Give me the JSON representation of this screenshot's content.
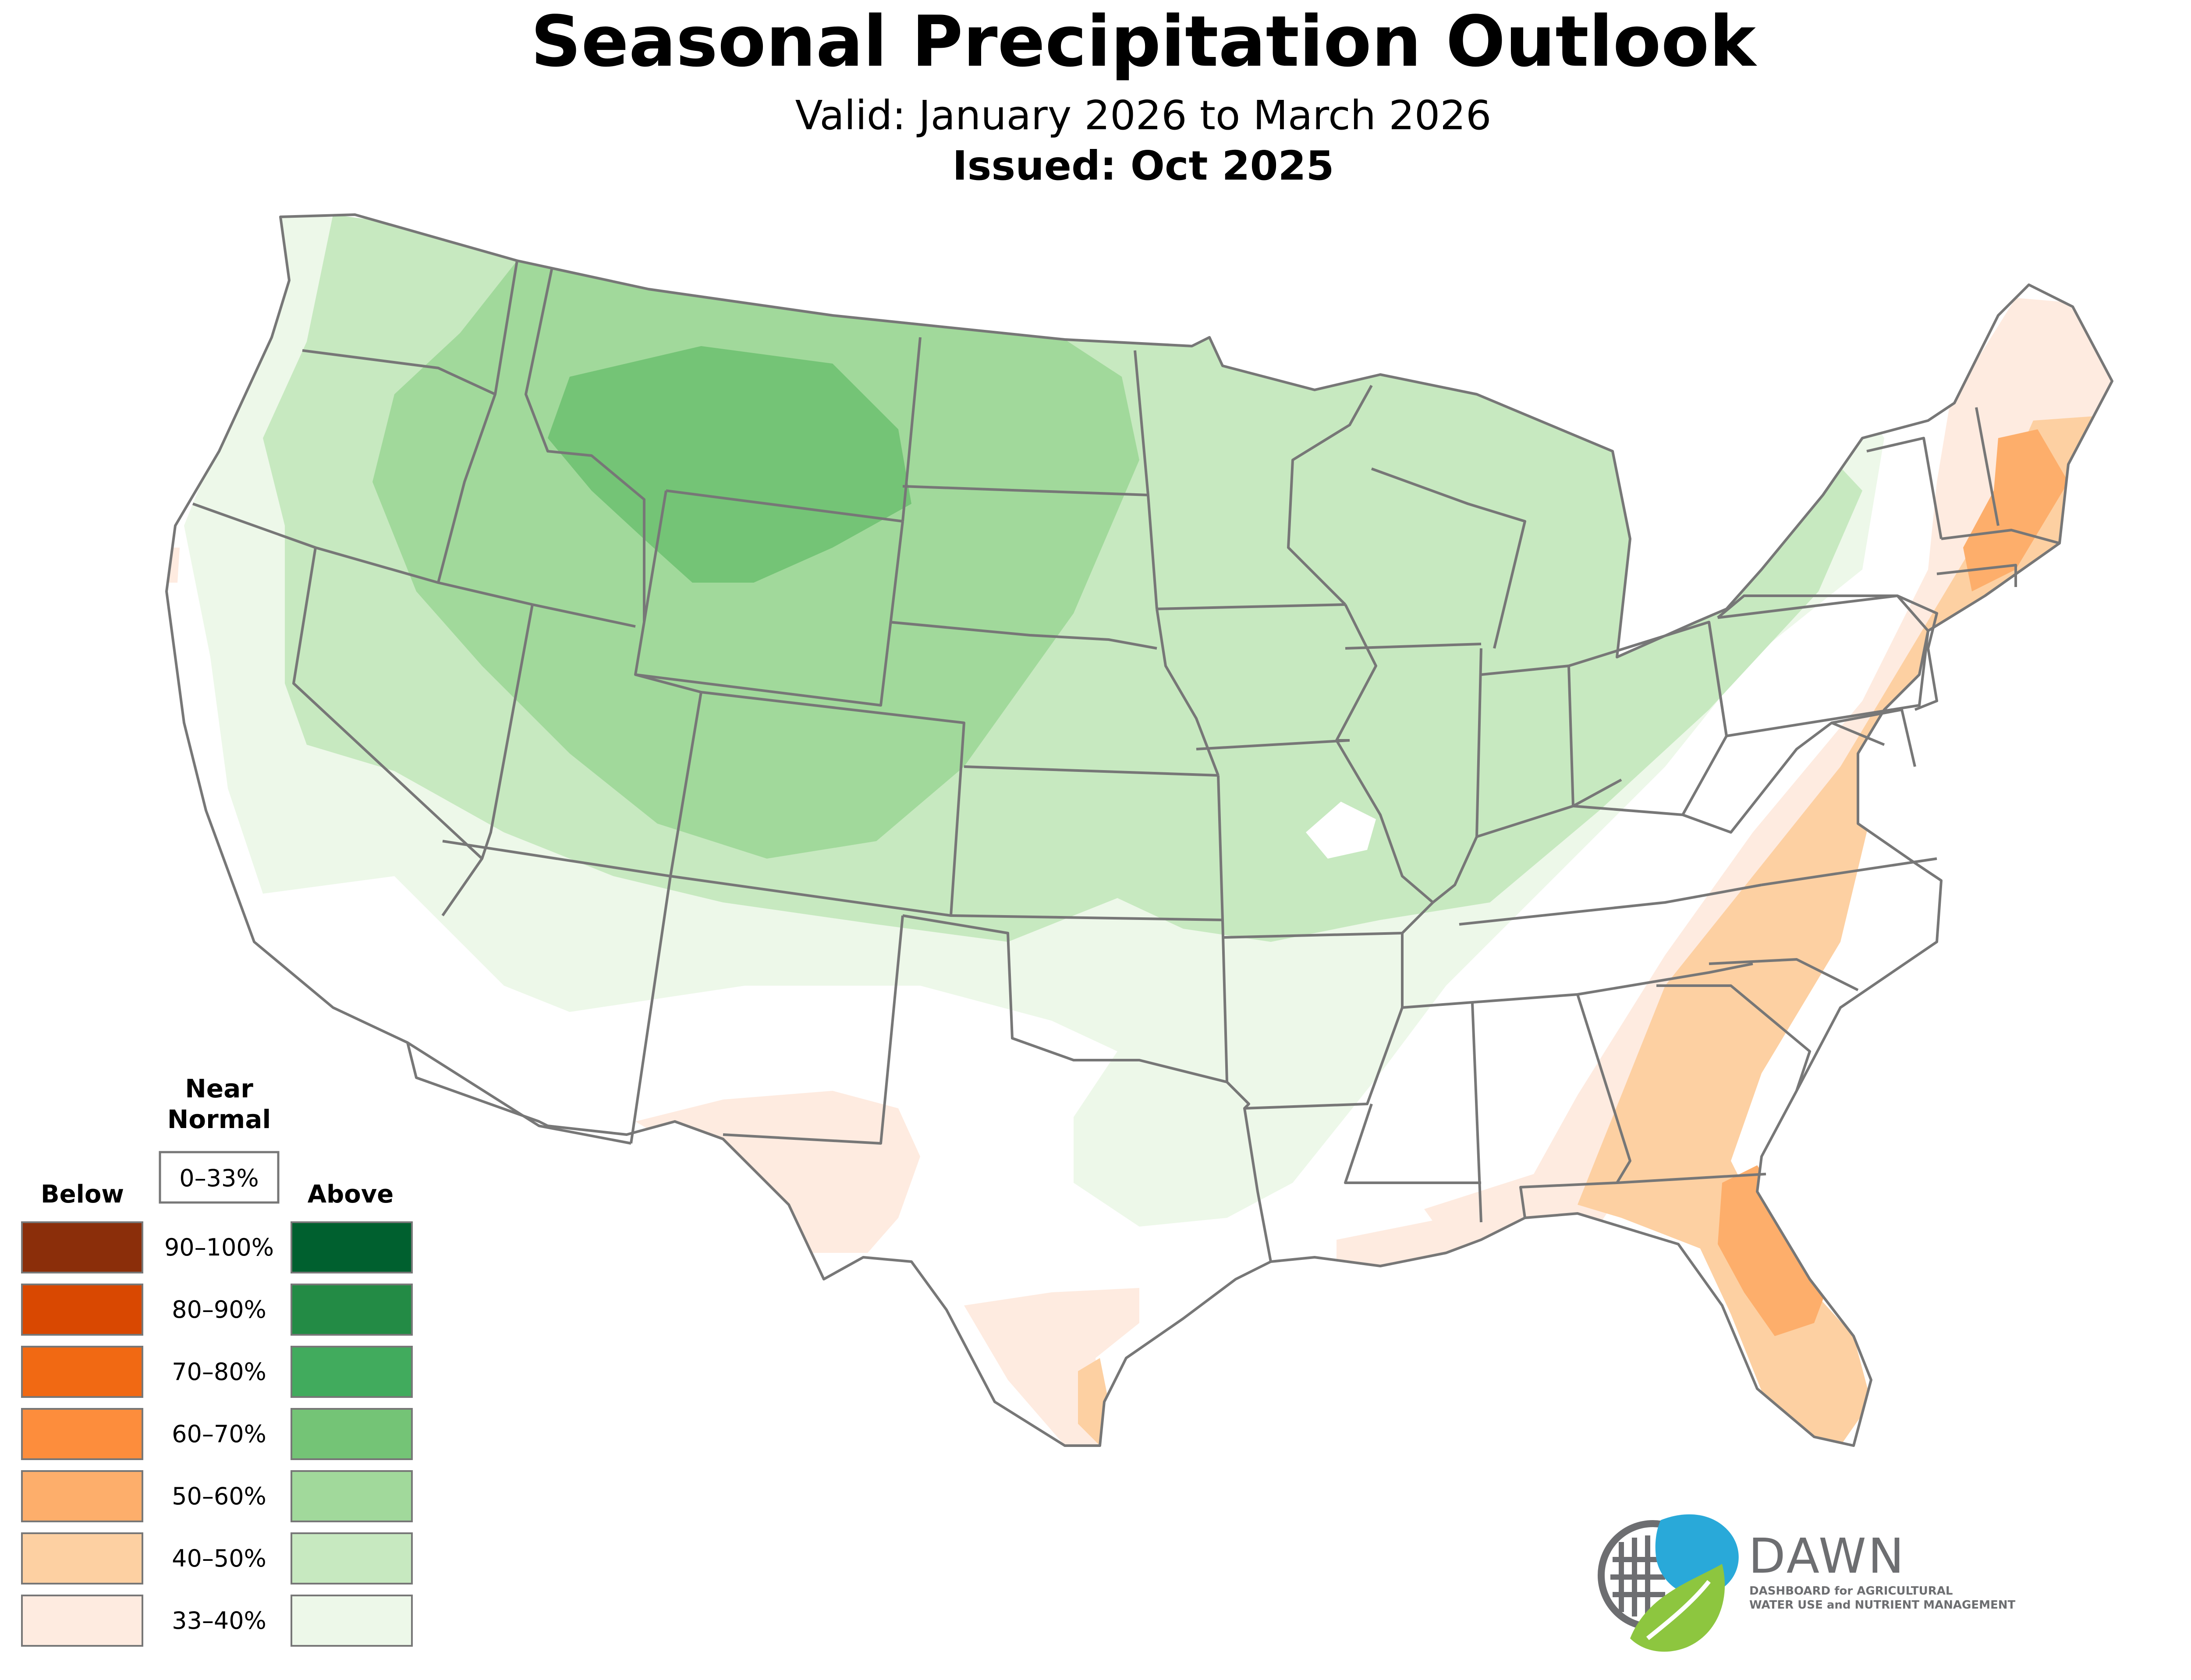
{
  "header": {
    "title": "Seasonal Precipitation Outlook",
    "valid": "Valid: January 2026 to March 2026",
    "issued": "Issued: Oct 2025"
  },
  "legend": {
    "near_normal_line1": "Near",
    "near_normal_line2": "Normal",
    "near_normal_range": "0–33%",
    "below_label": "Below",
    "above_label": "Above",
    "ranges": [
      "90–100%",
      "80–90%",
      "70–80%",
      "60–70%",
      "50–60%",
      "40–50%",
      "33–40%"
    ],
    "below_colors": [
      "#8b2e0a",
      "#d94801",
      "#f16913",
      "#fd8d3c",
      "#fdae6b",
      "#fdd0a2",
      "#feebe0"
    ],
    "above_colors": [
      "#00602f",
      "#238b45",
      "#41ab5d",
      "#74c476",
      "#a1d99b",
      "#c7e9c0",
      "#edf8e9"
    ]
  },
  "map": {
    "outline_color": "#777777",
    "region_colors": {
      "above_33_40": "#edf8e9",
      "above_40_50": "#c7e9c0",
      "above_50_60": "#a1d99b",
      "above_60_70": "#74c476",
      "below_33_40": "#feebe0",
      "below_40_50": "#fdd0a2",
      "below_50_60": "#fdae6b"
    }
  },
  "logo": {
    "name": "DAWN",
    "tagline1": "DASHBOARD for AGRICULTURAL",
    "tagline2": "WATER USE and NUTRIENT MANAGEMENT",
    "blue": "#29a9d9",
    "green": "#8dc63f",
    "gray": "#6d6e71"
  }
}
